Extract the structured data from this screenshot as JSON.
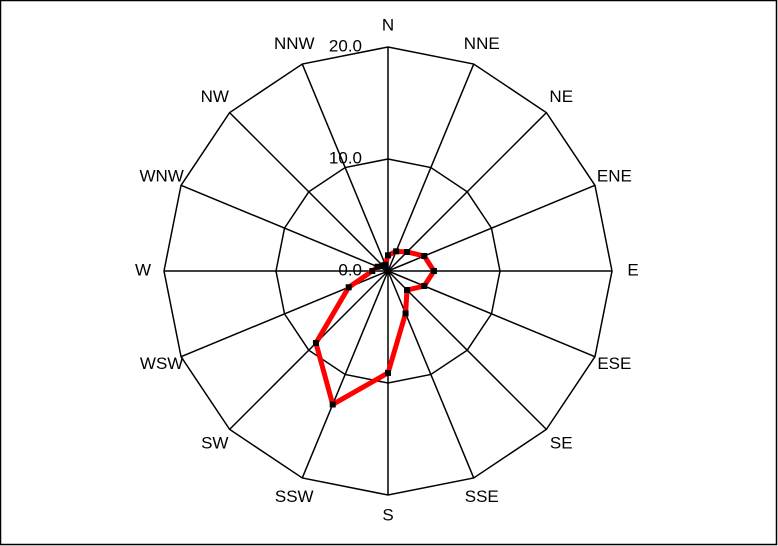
{
  "chart_data": {
    "type": "radar",
    "categories": [
      "N",
      "NNE",
      "NE",
      "ENE",
      "E",
      "ESE",
      "SE",
      "SSE",
      "S",
      "SSW",
      "SW",
      "WSW",
      "W",
      "WNW",
      "NW",
      "NNW"
    ],
    "values": [
      1.4,
      1.9,
      2.4,
      3.5,
      4.1,
      3.5,
      2.4,
      4.1,
      9.1,
      12.9,
      9.1,
      3.8,
      1.4,
      1.0,
      0.7,
      0.6
    ],
    "color": "#ff0000",
    "rlim": [
      0,
      20
    ],
    "rticks": [
      {
        "value": 0,
        "label": "0.0"
      },
      {
        "value": 10,
        "label": "10.0"
      },
      {
        "value": 20,
        "label": "20.0"
      }
    ],
    "grid": true
  }
}
